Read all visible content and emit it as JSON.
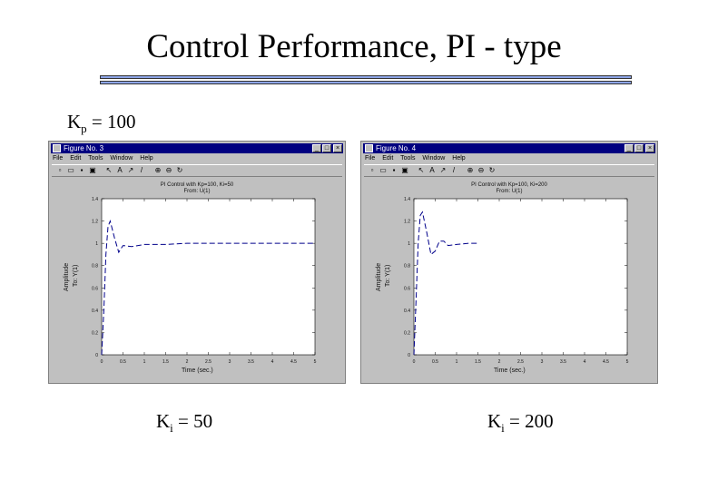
{
  "slide": {
    "title": "Control Performance, PI - type",
    "kp_label": "K",
    "kp_sub": "p",
    "kp_value": " = 100"
  },
  "figures": [
    {
      "window_title": "Figure No. 3",
      "menu": [
        "File",
        "Edit",
        "Tools",
        "Window",
        "Help"
      ],
      "plot_title": "PI Control with Kp=100, Ki=50",
      "plot_subtitle": "From: U(1)",
      "ylabel": "Amplitude",
      "ylabel2": "To: Y(1)",
      "xlabel": "Time (sec.)",
      "ki_label": "K",
      "ki_sub": "i",
      "ki_value": " = 50",
      "chart_data": {
        "type": "line",
        "x": [
          0,
          0.05,
          0.1,
          0.15,
          0.2,
          0.3,
          0.4,
          0.5,
          0.7,
          1.0,
          1.5,
          2.0,
          3.0,
          4.0,
          5.0
        ],
        "series": [
          {
            "values": [
              0,
              0.4,
              0.9,
              1.15,
              1.2,
              1.05,
              0.92,
              0.98,
              0.97,
              0.99,
              0.99,
              1.0,
              1.0,
              1.0,
              1.0
            ]
          }
        ],
        "xlim": [
          0,
          5
        ],
        "ylim": [
          0,
          1.4
        ],
        "xticks": [
          "0",
          "0.5",
          "1",
          "1.5",
          "2",
          "2.5",
          "3",
          "3.5",
          "4",
          "4.5",
          "5"
        ],
        "yticks": [
          "0",
          "0.2",
          "0.4",
          "0.6",
          "0.8",
          "1",
          "1.2",
          "1.4"
        ],
        "line_color": "#00008b"
      }
    },
    {
      "window_title": "Figure No. 4",
      "menu": [
        "File",
        "Edit",
        "Tools",
        "Window",
        "Help"
      ],
      "plot_title": "PI Control with Kp=100, Ki=200",
      "plot_subtitle": "From: U(1)",
      "ylabel": "Amplitude",
      "ylabel2": "To: Y(1)",
      "xlabel": "Time (sec.)",
      "ki_label": "K",
      "ki_sub": "i",
      "ki_value": " = 200",
      "chart_data": {
        "type": "line",
        "x": [
          0,
          0.05,
          0.1,
          0.15,
          0.2,
          0.3,
          0.4,
          0.5,
          0.6,
          0.7,
          0.8,
          1.0,
          1.3,
          1.5
        ],
        "series": [
          {
            "values": [
              0,
              0.5,
              1.0,
              1.25,
              1.28,
              1.1,
              0.9,
              0.93,
              1.02,
              1.02,
              0.98,
              0.99,
              1.0,
              1.0
            ]
          }
        ],
        "xlim": [
          0,
          5
        ],
        "ylim": [
          0,
          1.4
        ],
        "xticks": [
          "0",
          "0.5",
          "1",
          "1.5",
          "2",
          "2.5",
          "3",
          "3.5",
          "4",
          "4.5",
          "5"
        ],
        "yticks": [
          "0",
          "0.2",
          "0.4",
          "0.6",
          "0.8",
          "1",
          "1.2",
          "1.4"
        ],
        "line_color": "#00008b"
      }
    }
  ]
}
